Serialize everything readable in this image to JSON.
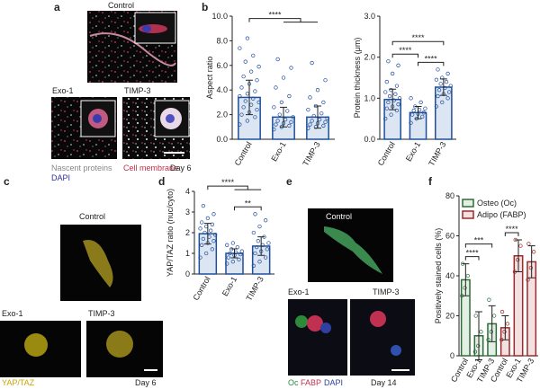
{
  "panel_labels": [
    "a",
    "b",
    "c",
    "d",
    "e",
    "f"
  ],
  "image_labels": {
    "a_control": "Control",
    "a_exo": "Exo-1",
    "a_timp": "TIMP-3",
    "a_nascent": "Nascent proteins",
    "a_dapi": "DAPI",
    "a_membrane": "Cell membrane",
    "a_day": "Day 6",
    "c_control": "Control",
    "c_exo": "Exo-1",
    "c_timp": "TIMP-3",
    "c_yap": "YAP/TAZ",
    "c_day": "Day 6",
    "e_control": "Control",
    "e_exo": "Exo-1",
    "e_timp": "TIMP-3",
    "e_oc": "Oc",
    "e_fabp": "FABP",
    "e_dapi": "DAPI",
    "e_day": "Day 14"
  },
  "chart_data": [
    {
      "type": "bar",
      "ylabel": "Aspect ratio",
      "categories": [
        "Control",
        "Exo-1",
        "TIMP-3"
      ],
      "values": [
        3.4,
        1.8,
        1.8
      ],
      "errors": [
        1.4,
        0.8,
        0.9
      ],
      "color": "#1f4e9c",
      "fill": "#dce6f2",
      "points": [
        [
          1.2,
          1.5,
          1.8,
          2.0,
          2.2,
          2.4,
          2.6,
          2.8,
          3.0,
          3.1,
          3.3,
          3.5,
          3.7,
          3.9,
          4.2,
          4.5,
          4.8,
          5.1,
          5.5,
          5.9,
          6.3,
          6.8,
          7.4,
          8.2
        ],
        [
          0.8,
          1.0,
          1.1,
          1.2,
          1.3,
          1.4,
          1.5,
          1.6,
          1.8,
          2.0,
          2.3,
          2.6,
          3.0,
          3.5,
          4.2,
          5.0,
          5.8,
          6.5
        ],
        [
          0.9,
          1.0,
          1.1,
          1.2,
          1.3,
          1.4,
          1.5,
          1.6,
          1.7,
          1.9,
          2.1,
          2.4,
          2.7,
          3.0,
          3.4,
          4.0,
          4.8,
          6.2
        ]
      ],
      "ylim": [
        0,
        10
      ],
      "yticks": [
        {
          "value": 0,
          "label": "0.0"
        },
        {
          "value": 2,
          "label": "2.0"
        },
        {
          "value": 4,
          "label": "4.0"
        },
        {
          "value": 6,
          "label": "6.0"
        },
        {
          "value": 8,
          "label": "8.0"
        },
        {
          "value": 10,
          "label": "10.0"
        }
      ],
      "significance": [
        {
          "groups": [
            [
              0
            ],
            [
              1,
              2
            ]
          ],
          "label": "****"
        }
      ]
    },
    {
      "type": "bar",
      "ylabel": "Protein thickness (μm)",
      "categories": [
        "Control",
        "Exo-1",
        "TIMP-3"
      ],
      "values": [
        0.97,
        0.65,
        1.27
      ],
      "errors": [
        0.25,
        0.15,
        0.2
      ],
      "color": "#1f4e9c",
      "fill": "#dce6f2",
      "points": [
        [
          0.5,
          0.6,
          0.7,
          0.75,
          0.8,
          0.85,
          0.9,
          0.95,
          1.0,
          1.05,
          1.1,
          1.15,
          1.2,
          1.3,
          1.4,
          1.6,
          1.8,
          1.9
        ],
        [
          0.4,
          0.5,
          0.55,
          0.6,
          0.62,
          0.65,
          0.7,
          0.72,
          0.75,
          0.8,
          0.9,
          1.0
        ],
        [
          0.8,
          0.9,
          1.0,
          1.05,
          1.1,
          1.15,
          1.2,
          1.25,
          1.3,
          1.35,
          1.4,
          1.45,
          1.5,
          1.6,
          1.7
        ]
      ],
      "ylim": [
        0,
        3
      ],
      "yticks": [
        {
          "value": 0,
          "label": "0.0"
        },
        {
          "value": 1,
          "label": "1.0"
        },
        {
          "value": 2,
          "label": "2.0"
        },
        {
          "value": 3,
          "label": "3.0"
        }
      ],
      "significance": [
        {
          "groups": [
            [
              0
            ],
            [
              1
            ]
          ],
          "label": "****"
        },
        {
          "groups": [
            [
              1
            ],
            [
              2
            ]
          ],
          "label": "****"
        },
        {
          "groups": [
            [
              0
            ],
            [
              2
            ]
          ],
          "label": "****"
        }
      ]
    },
    {
      "type": "bar",
      "ylabel": "YAP/TAZ ratio (nuc/cyto)",
      "categories": [
        "Control",
        "Exo-1",
        "TIMP-3"
      ],
      "values": [
        1.95,
        1.0,
        1.35
      ],
      "errors": [
        0.5,
        0.22,
        0.45
      ],
      "color": "#1f4e9c",
      "fill": "#dce6f2",
      "points": [
        [
          0.8,
          1.0,
          1.2,
          1.4,
          1.5,
          1.6,
          1.7,
          1.8,
          1.9,
          2.0,
          2.1,
          2.2,
          2.3,
          2.4,
          2.5,
          2.7,
          2.9,
          3.3
        ],
        [
          0.5,
          0.6,
          0.7,
          0.8,
          0.9,
          0.95,
          1.0,
          1.05,
          1.1,
          1.2,
          1.3,
          1.4,
          1.5
        ],
        [
          0.4,
          0.6,
          0.8,
          1.0,
          1.1,
          1.2,
          1.3,
          1.4,
          1.5,
          1.6,
          1.8,
          2.0,
          2.3,
          2.6,
          2.9
        ]
      ],
      "ylim": [
        0,
        4
      ],
      "yticks": [
        0,
        1,
        2,
        3,
        4
      ],
      "significance": [
        {
          "groups": [
            [
              0
            ],
            [
              1,
              2
            ]
          ],
          "label": "****"
        },
        {
          "groups": [
            [
              1
            ],
            [
              2
            ]
          ],
          "label": "**"
        }
      ]
    },
    {
      "type": "bar",
      "ylabel": "Positively stained cells (%)",
      "categories": [
        "Control",
        "Exo-1",
        "TIMP-3"
      ],
      "series": [
        {
          "name": "Osteo (Oc)",
          "color": "#2e6b3a",
          "fill": "#e3efe3",
          "values": [
            38,
            10,
            16
          ],
          "errors": [
            8,
            12,
            9
          ],
          "points": [
            [
              30,
              34,
              40,
              46
            ],
            [
              2,
              5,
              12,
              20
            ],
            [
              8,
              12,
              20,
              28
            ]
          ]
        },
        {
          "name": "Adipo (FABP)",
          "color": "#9b2a2a",
          "fill": "#f3e1e1",
          "values": [
            14,
            50,
            47
          ],
          "errors": [
            6,
            8,
            8
          ],
          "points": [
            [
              8,
              12,
              16,
              22
            ],
            [
              42,
              48,
              55,
              58
            ],
            [
              38,
              44,
              52,
              56
            ]
          ]
        }
      ],
      "ylim": [
        0,
        80
      ],
      "yticks": [
        0,
        20,
        40,
        60,
        80
      ],
      "significance": [
        {
          "groups": [
            [
              0
            ],
            [
              1
            ]
          ],
          "label": "****"
        },
        {
          "groups": [
            [
              0
            ],
            [
              2
            ]
          ],
          "label": "***"
        },
        {
          "groups": [
            [
              3
            ],
            [
              4
            ]
          ],
          "label": "****"
        }
      ]
    }
  ]
}
